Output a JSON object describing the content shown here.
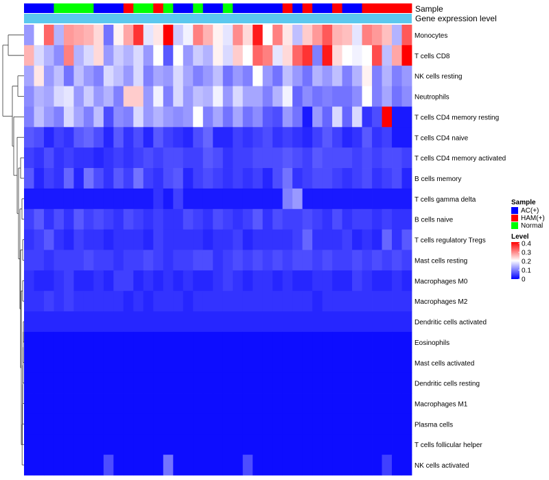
{
  "chart_data": {
    "type": "heatmap",
    "annotation_labels": [
      "Sample",
      "Gene expression level"
    ],
    "sample_groups": [
      "AC(+)",
      "AC(+)",
      "AC(+)",
      "Normal",
      "Normal",
      "Normal",
      "Normal",
      "AC(+)",
      "AC(+)",
      "AC(+)",
      "HAM(+)",
      "Normal",
      "Normal",
      "HAM(+)",
      "Normal",
      "AC(+)",
      "AC(+)",
      "Normal",
      "AC(+)",
      "AC(+)",
      "Normal",
      "AC(+)",
      "AC(+)",
      "AC(+)",
      "AC(+)",
      "AC(+)",
      "HAM(+)",
      "AC(+)",
      "HAM(+)",
      "AC(+)",
      "AC(+)",
      "HAM(+)",
      "AC(+)",
      "AC(+)",
      "HAM(+)",
      "HAM(+)",
      "HAM(+)",
      "HAM(+)",
      "HAM(+)"
    ],
    "rows": [
      "Monocytes",
      "T cells CD8",
      "NK cells resting",
      "Neutrophils",
      "T cells CD4 memory resting",
      "T cells CD4 naive",
      "T cells CD4 memory activated",
      "B cells memory",
      "T cells gamma delta",
      "B cells naive",
      "T cells regulatory  Tregs",
      "Mast cells resting",
      "Macrophages M0",
      "Macrophages M2",
      "Dendritic cells activated",
      "Eosinophils",
      "Mast cells activated",
      "Dendritic cells resting",
      "Macrophages M1",
      "Plasma cells",
      "T cells follicular helper",
      "NK cells activated"
    ],
    "values": [
      [
        0.12,
        0.2,
        0.32,
        0.14,
        0.28,
        0.27,
        0.26,
        0.23,
        0.09,
        0.21,
        0.27,
        0.36,
        0.18,
        0.22,
        0.4,
        0.16,
        0.19,
        0.3,
        0.26,
        0.21,
        0.18,
        0.29,
        0.23,
        0.38,
        0.2,
        0.3,
        0.22,
        0.15,
        0.24,
        0.28,
        0.33,
        0.26,
        0.25,
        0.18,
        0.3,
        0.28,
        0.25,
        0.14,
        0.33
      ],
      [
        0.26,
        0.17,
        0.14,
        0.11,
        0.3,
        0.14,
        0.17,
        0.23,
        0.12,
        0.16,
        0.14,
        0.17,
        0.12,
        0.2,
        0.07,
        0.2,
        0.12,
        0.16,
        0.14,
        0.21,
        0.17,
        0.24,
        0.2,
        0.32,
        0.3,
        0.18,
        0.23,
        0.32,
        0.36,
        0.1,
        0.38,
        0.23,
        0.2,
        0.19,
        0.2,
        0.34,
        0.15,
        0.27,
        0.4
      ],
      [
        0.13,
        0.22,
        0.12,
        0.15,
        0.09,
        0.15,
        0.12,
        0.1,
        0.17,
        0.15,
        0.12,
        0.17,
        0.1,
        0.13,
        0.12,
        0.17,
        0.13,
        0.1,
        0.12,
        0.15,
        0.09,
        0.12,
        0.1,
        0.2,
        0.12,
        0.09,
        0.15,
        0.12,
        0.09,
        0.14,
        0.12,
        0.15,
        0.1,
        0.14,
        0.21,
        0.1,
        0.14,
        0.1,
        0.12
      ],
      [
        0.11,
        0.14,
        0.13,
        0.17,
        0.18,
        0.12,
        0.16,
        0.12,
        0.14,
        0.1,
        0.24,
        0.24,
        0.12,
        0.19,
        0.1,
        0.17,
        0.12,
        0.15,
        0.14,
        0.19,
        0.12,
        0.17,
        0.13,
        0.13,
        0.1,
        0.14,
        0.19,
        0.08,
        0.11,
        0.09,
        0.1,
        0.09,
        0.09,
        0.11,
        0.2,
        0.1,
        0.13,
        0.09,
        0.11
      ],
      [
        0.1,
        0.15,
        0.12,
        0.1,
        0.17,
        0.13,
        0.1,
        0.15,
        0.06,
        0.11,
        0.1,
        0.17,
        0.12,
        0.14,
        0.12,
        0.11,
        0.12,
        0.2,
        0.1,
        0.13,
        0.09,
        0.13,
        0.09,
        0.11,
        0.07,
        0.06,
        0.12,
        0.09,
        0.02,
        0.12,
        0.08,
        0.17,
        0.08,
        0.17,
        0.04,
        0.06,
        0.41,
        0.02,
        0.02
      ],
      [
        0.07,
        0.06,
        0.03,
        0.05,
        0.04,
        0.07,
        0.08,
        0.06,
        0.03,
        0.07,
        0.04,
        0.06,
        0.03,
        0.07,
        0.05,
        0.04,
        0.03,
        0.06,
        0.08,
        0.03,
        0.03,
        0.05,
        0.04,
        0.05,
        0.06,
        0.04,
        0.05,
        0.04,
        0.03,
        0.05,
        0.07,
        0.05,
        0.03,
        0.04,
        0.07,
        0.04,
        0.05,
        0.02,
        0.02
      ],
      [
        0.05,
        0.04,
        0.06,
        0.04,
        0.05,
        0.04,
        0.04,
        0.03,
        0.04,
        0.05,
        0.04,
        0.05,
        0.06,
        0.05,
        0.06,
        0.06,
        0.05,
        0.05,
        0.07,
        0.06,
        0.04,
        0.05,
        0.05,
        0.06,
        0.06,
        0.06,
        0.07,
        0.06,
        0.05,
        0.07,
        0.06,
        0.06,
        0.06,
        0.05,
        0.06,
        0.05,
        0.06,
        0.06,
        0.05
      ],
      [
        0.07,
        0.03,
        0.05,
        0.04,
        0.08,
        0.03,
        0.09,
        0.06,
        0.04,
        0.07,
        0.05,
        0.09,
        0.05,
        0.04,
        0.06,
        0.07,
        0.03,
        0.05,
        0.06,
        0.05,
        0.04,
        0.05,
        0.04,
        0.05,
        0.03,
        0.06,
        0.09,
        0.04,
        0.05,
        0.06,
        0.06,
        0.05,
        0.04,
        0.05,
        0.06,
        0.04,
        0.05,
        0.06,
        0.03
      ],
      [
        0.02,
        0.02,
        0.02,
        0.02,
        0.02,
        0.02,
        0.02,
        0.02,
        0.02,
        0.02,
        0.02,
        0.02,
        0.02,
        0.04,
        0.02,
        0.05,
        0.02,
        0.02,
        0.02,
        0.02,
        0.02,
        0.02,
        0.02,
        0.02,
        0.02,
        0.02,
        0.1,
        0.12,
        0.02,
        0.02,
        0.02,
        0.02,
        0.02,
        0.02,
        0.02,
        0.02,
        0.02,
        0.02,
        0.02
      ],
      [
        0.05,
        0.07,
        0.04,
        0.06,
        0.04,
        0.07,
        0.05,
        0.06,
        0.05,
        0.04,
        0.06,
        0.05,
        0.04,
        0.05,
        0.04,
        0.04,
        0.06,
        0.05,
        0.04,
        0.06,
        0.05,
        0.04,
        0.05,
        0.07,
        0.04,
        0.06,
        0.05,
        0.05,
        0.06,
        0.05,
        0.04,
        0.06,
        0.04,
        0.05,
        0.05,
        0.04,
        0.05,
        0.04,
        0.04
      ],
      [
        0.04,
        0.05,
        0.07,
        0.04,
        0.03,
        0.05,
        0.04,
        0.04,
        0.03,
        0.04,
        0.04,
        0.04,
        0.03,
        0.05,
        0.04,
        0.04,
        0.04,
        0.04,
        0.03,
        0.04,
        0.04,
        0.05,
        0.03,
        0.04,
        0.04,
        0.04,
        0.04,
        0.05,
        0.08,
        0.04,
        0.04,
        0.04,
        0.05,
        0.03,
        0.04,
        0.03,
        0.08,
        0.04,
        0.07
      ],
      [
        0.05,
        0.05,
        0.04,
        0.05,
        0.05,
        0.05,
        0.06,
        0.05,
        0.05,
        0.04,
        0.05,
        0.05,
        0.06,
        0.05,
        0.04,
        0.05,
        0.05,
        0.06,
        0.06,
        0.04,
        0.05,
        0.06,
        0.05,
        0.06,
        0.05,
        0.06,
        0.05,
        0.06,
        0.06,
        0.05,
        0.06,
        0.05,
        0.05,
        0.06,
        0.05,
        0.06,
        0.05,
        0.06,
        0.05
      ],
      [
        0.04,
        0.03,
        0.03,
        0.04,
        0.05,
        0.03,
        0.03,
        0.04,
        0.03,
        0.05,
        0.05,
        0.03,
        0.04,
        0.03,
        0.04,
        0.03,
        0.04,
        0.03,
        0.03,
        0.04,
        0.05,
        0.04,
        0.03,
        0.04,
        0.04,
        0.03,
        0.04,
        0.03,
        0.03,
        0.04,
        0.04,
        0.03,
        0.03,
        0.05,
        0.04,
        0.03,
        0.03,
        0.04,
        0.03
      ],
      [
        0.04,
        0.04,
        0.05,
        0.04,
        0.05,
        0.04,
        0.04,
        0.04,
        0.04,
        0.04,
        0.03,
        0.04,
        0.03,
        0.04,
        0.04,
        0.04,
        0.03,
        0.04,
        0.04,
        0.04,
        0.04,
        0.04,
        0.04,
        0.04,
        0.04,
        0.04,
        0.04,
        0.04,
        0.04,
        0.03,
        0.04,
        0.04,
        0.04,
        0.04,
        0.04,
        0.04,
        0.04,
        0.04,
        0.04
      ],
      [
        0.03,
        0.03,
        0.03,
        0.03,
        0.03,
        0.03,
        0.03,
        0.03,
        0.03,
        0.03,
        0.03,
        0.03,
        0.03,
        0.03,
        0.03,
        0.03,
        0.03,
        0.03,
        0.03,
        0.03,
        0.03,
        0.03,
        0.03,
        0.03,
        0.03,
        0.03,
        0.03,
        0.03,
        0.03,
        0.03,
        0.03,
        0.03,
        0.03,
        0.03,
        0.03,
        0.03,
        0.03,
        0.03,
        0.03
      ],
      [
        0.01,
        0.01,
        0.01,
        0.01,
        0.01,
        0.01,
        0.01,
        0.01,
        0.01,
        0.01,
        0.01,
        0.01,
        0.01,
        0.01,
        0.01,
        0.01,
        0.01,
        0.01,
        0.01,
        0.01,
        0.01,
        0.01,
        0.01,
        0.01,
        0.01,
        0.01,
        0.01,
        0.01,
        0.01,
        0.01,
        0.01,
        0.01,
        0.01,
        0.01,
        0.01,
        0.01,
        0.01,
        0.01,
        0.01
      ],
      [
        0.01,
        0.01,
        0.01,
        0.01,
        0.01,
        0.01,
        0.01,
        0.01,
        0.01,
        0.01,
        0.01,
        0.01,
        0.01,
        0.01,
        0.01,
        0.01,
        0.01,
        0.01,
        0.01,
        0.01,
        0.01,
        0.01,
        0.01,
        0.01,
        0.01,
        0.01,
        0.01,
        0.01,
        0.01,
        0.01,
        0.01,
        0.01,
        0.01,
        0.01,
        0.01,
        0.01,
        0.01,
        0.01,
        0.01
      ],
      [
        0.01,
        0.01,
        0.01,
        0.01,
        0.01,
        0.01,
        0.01,
        0.01,
        0.01,
        0.01,
        0.01,
        0.01,
        0.01,
        0.01,
        0.01,
        0.01,
        0.01,
        0.01,
        0.01,
        0.01,
        0.01,
        0.01,
        0.01,
        0.01,
        0.01,
        0.01,
        0.01,
        0.01,
        0.01,
        0.01,
        0.01,
        0.01,
        0.01,
        0.01,
        0.01,
        0.01,
        0.01,
        0.01,
        0.01
      ],
      [
        0.01,
        0.01,
        0.01,
        0.01,
        0.01,
        0.01,
        0.01,
        0.01,
        0.01,
        0.01,
        0.01,
        0.01,
        0.01,
        0.01,
        0.01,
        0.01,
        0.01,
        0.01,
        0.01,
        0.01,
        0.01,
        0.01,
        0.01,
        0.01,
        0.01,
        0.01,
        0.01,
        0.01,
        0.01,
        0.01,
        0.01,
        0.01,
        0.01,
        0.01,
        0.01,
        0.01,
        0.01,
        0.01,
        0.01
      ],
      [
        0.01,
        0.01,
        0.01,
        0.01,
        0.01,
        0.01,
        0.01,
        0.01,
        0.01,
        0.01,
        0.01,
        0.01,
        0.01,
        0.01,
        0.01,
        0.01,
        0.01,
        0.01,
        0.01,
        0.01,
        0.01,
        0.01,
        0.01,
        0.01,
        0.01,
        0.01,
        0.01,
        0.01,
        0.01,
        0.01,
        0.01,
        0.01,
        0.01,
        0.01,
        0.01,
        0.01,
        0.01,
        0.01,
        0.01
      ],
      [
        0.01,
        0.01,
        0.01,
        0.01,
        0.01,
        0.01,
        0.01,
        0.01,
        0.01,
        0.01,
        0.01,
        0.01,
        0.01,
        0.01,
        0.01,
        0.01,
        0.01,
        0.01,
        0.01,
        0.01,
        0.01,
        0.01,
        0.01,
        0.01,
        0.01,
        0.01,
        0.01,
        0.01,
        0.01,
        0.01,
        0.01,
        0.01,
        0.01,
        0.01,
        0.01,
        0.01,
        0.01,
        0.01,
        0.01
      ],
      [
        0.01,
        0.01,
        0.01,
        0.01,
        0.01,
        0.01,
        0.01,
        0.01,
        0.06,
        0.01,
        0.01,
        0.01,
        0.01,
        0.01,
        0.09,
        0.01,
        0.01,
        0.01,
        0.01,
        0.01,
        0.01,
        0.01,
        0.06,
        0.01,
        0.01,
        0.01,
        0.01,
        0.01,
        0.01,
        0.01,
        0.01,
        0.01,
        0.01,
        0.01,
        0.01,
        0.01,
        0.05,
        0.01,
        0.01
      ]
    ],
    "color_scale": {
      "min": 0,
      "mid": 0.2,
      "max": 0.4,
      "low": "#0000ff",
      "mid_color": "#ffffff",
      "high": "#ff0000",
      "ticks": [
        "0.4",
        "0.3",
        "0.2",
        "0.1",
        "0"
      ]
    },
    "legend": {
      "sample_title": "Sample",
      "sample_entries": [
        {
          "label": "AC(+)",
          "color": "#0000ff"
        },
        {
          "label": "HAM(+)",
          "color": "#ff0000"
        },
        {
          "label": "Normal",
          "color": "#00ff00"
        }
      ],
      "level_title": "Level",
      "placement": "right"
    },
    "expression_bar_color": "#5bc8ee",
    "dendrogram_color": "#333333"
  }
}
